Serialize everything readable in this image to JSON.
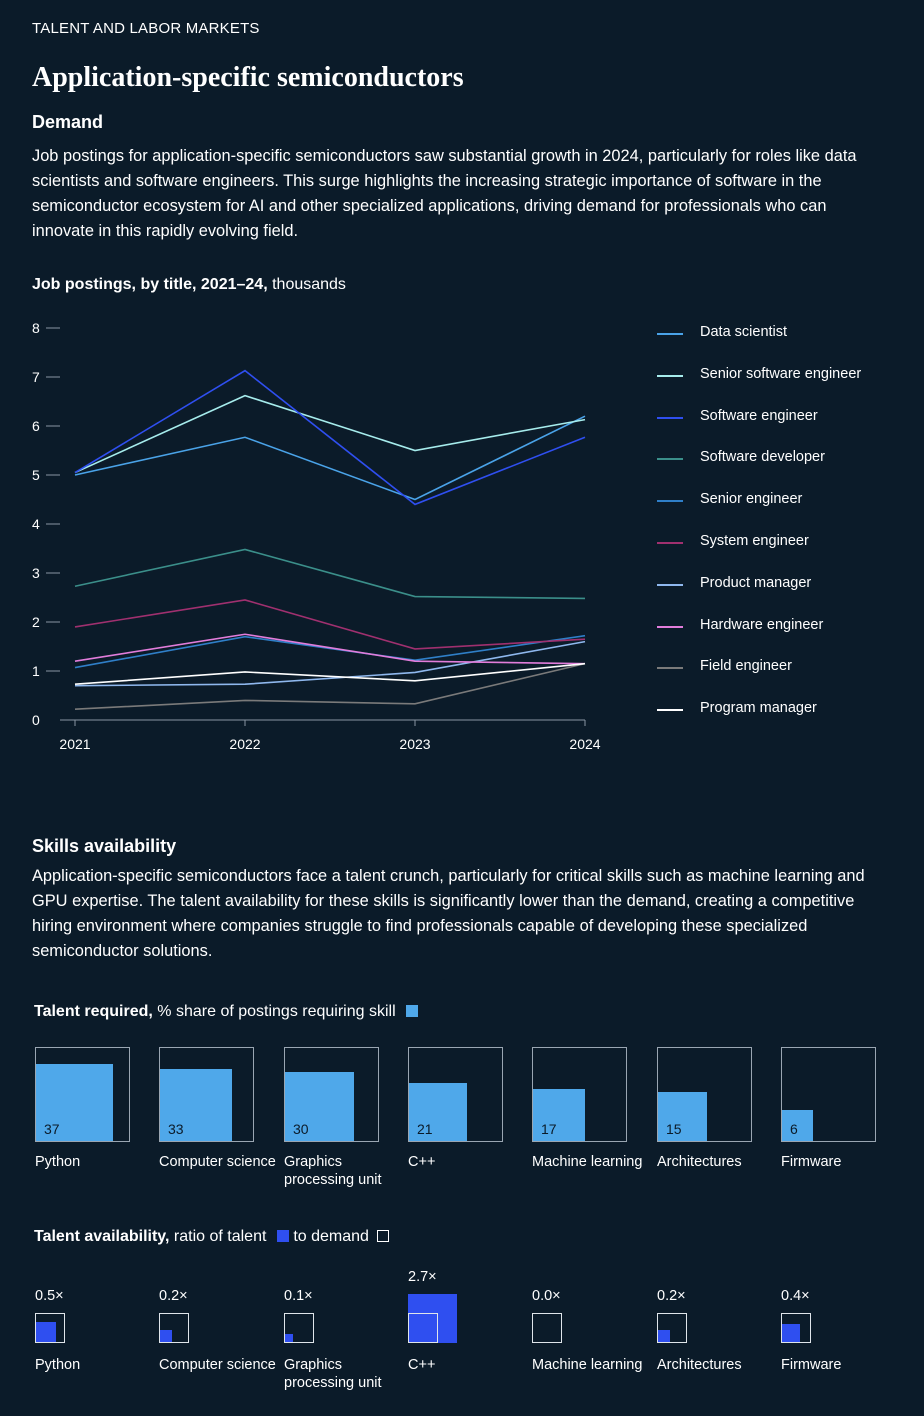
{
  "header": {
    "eyebrow": "TALENT AND LABOR MARKETS",
    "title": "Application-specific semiconductors"
  },
  "demand": {
    "heading": "Demand",
    "paragraph": "Job postings for application-specific semiconductors saw substantial growth in 2024, particularly for roles like data scientists and software engineers. This surge highlights the increasing strategic importance of software in the semiconductor ecosystem for AI and other specialized applications, driving demand for professionals who can innovate in this rapidly evolving field."
  },
  "skills": {
    "heading": "Skills availability",
    "paragraph": "Application-specific semiconductors face a talent crunch, particularly for critical skills such as machine learning and GPU expertise. The talent availability for these skills is significantly lower than the demand, creating a competitive hiring environment where companies struggle to find professionals capable of developing these specialized semiconductor solutions."
  },
  "chart_data": [
    {
      "type": "line",
      "title_bold": "Job postings, by title, 2021–24,",
      "title_unit": "thousands",
      "x": [
        "2021",
        "2022",
        "2023",
        "2024"
      ],
      "ylim": [
        0,
        8
      ],
      "yticks": [
        0,
        1,
        2,
        3,
        4,
        5,
        6,
        7,
        8
      ],
      "legend_position": "right",
      "grid": false,
      "series": [
        {
          "name": "Data scientist",
          "color": "#4aa3e8",
          "values": [
            5.0,
            5.77,
            4.5,
            6.2
          ]
        },
        {
          "name": "Senior software engineer",
          "color": "#a6ecec",
          "values": [
            5.05,
            6.62,
            5.5,
            6.13
          ]
        },
        {
          "name": "Software engineer",
          "color": "#2f4ff0",
          "values": [
            5.05,
            7.13,
            4.4,
            5.77
          ]
        },
        {
          "name": "Software developer",
          "color": "#3b8f8a",
          "values": [
            2.73,
            3.48,
            2.52,
            2.48
          ]
        },
        {
          "name": "Senior engineer",
          "color": "#2f7fc8",
          "values": [
            1.07,
            1.7,
            1.22,
            1.72
          ]
        },
        {
          "name": "System engineer",
          "color": "#a0306f",
          "values": [
            1.9,
            2.45,
            1.45,
            1.65
          ]
        },
        {
          "name": "Product manager",
          "color": "#8fb8ee",
          "values": [
            0.7,
            0.73,
            0.97,
            1.6
          ]
        },
        {
          "name": "Hardware engineer",
          "color": "#e27ddb",
          "values": [
            1.2,
            1.75,
            1.2,
            1.15
          ]
        },
        {
          "name": "Field engineer",
          "color": "#7a7a7a",
          "values": [
            0.22,
            0.4,
            0.33,
            1.15
          ]
        },
        {
          "name": "Program manager",
          "color": "#ffffff",
          "values": [
            0.73,
            0.98,
            0.8,
            1.15
          ]
        }
      ]
    },
    {
      "type": "bar",
      "heading_bold": "Talent required,",
      "heading_rest": "% share of postings requiring skill",
      "color": "#4fa8ea",
      "categories": [
        "Python",
        "Computer science",
        "Graphics processing unit",
        "C++",
        "Machine learning",
        "Architectures",
        "Firmware"
      ],
      "values": [
        37,
        33,
        30,
        21,
        17,
        15,
        6
      ],
      "max": 57
    },
    {
      "type": "bar",
      "heading_bold": "Talent availability,",
      "heading_mid": "ratio of talent",
      "heading_end": "to demand",
      "talent_color": "#2f4ff0",
      "categories": [
        "Python",
        "Computer science",
        "Graphics processing unit",
        "C++",
        "Machine learning",
        "Architectures",
        "Firmware"
      ],
      "values": [
        0.5,
        0.2,
        0.1,
        2.7,
        0.0,
        0.2,
        0.4
      ],
      "value_labels": [
        "0.5×",
        "0.2×",
        "0.1×",
        "2.7×",
        "0.0×",
        "0.2×",
        "0.4×"
      ]
    }
  ]
}
